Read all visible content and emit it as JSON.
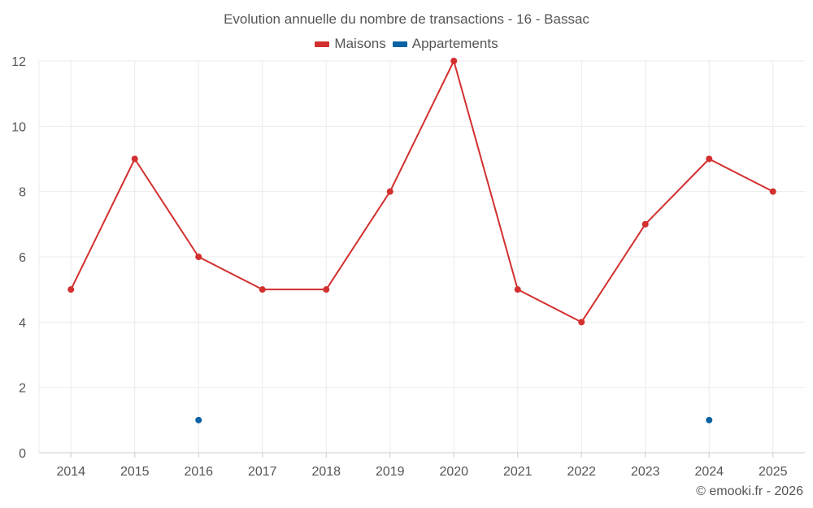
{
  "colors": {
    "maisons": "#d32f2f",
    "appartements": "#0b62a4",
    "grid": "#ebebeb",
    "axis": "#cccccc",
    "text": "#555555"
  },
  "legend": [
    {
      "label": "Maisons",
      "color": "#d32f2f"
    },
    {
      "label": "Appartements",
      "color": "#0b62a4"
    }
  ],
  "credit": "© emooki.fr - 2026",
  "chart_data": {
    "type": "line",
    "title": "Evolution annuelle du nombre de transactions - 16 - Bassac",
    "xlabel": "",
    "ylabel": "",
    "categories": [
      "2014",
      "2015",
      "2016",
      "2017",
      "2018",
      "2019",
      "2020",
      "2021",
      "2022",
      "2023",
      "2024",
      "2025"
    ],
    "ylim": [
      0,
      12
    ],
    "yticks": [
      "0",
      "2",
      "4",
      "6",
      "8",
      "10",
      "12"
    ],
    "grid": true,
    "legend_position": "top-center",
    "series": [
      {
        "name": "Maisons",
        "values": [
          5,
          9,
          6,
          5,
          5,
          8,
          12,
          5,
          4,
          7,
          9,
          8
        ]
      },
      {
        "name": "Appartements",
        "values": [
          null,
          null,
          1,
          null,
          null,
          null,
          null,
          null,
          null,
          null,
          1,
          null
        ]
      }
    ]
  }
}
